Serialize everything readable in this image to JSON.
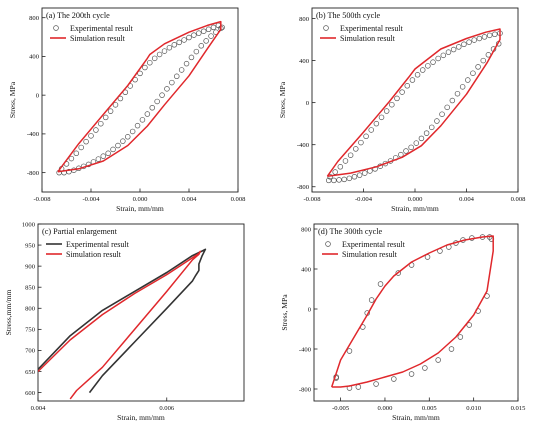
{
  "colors": {
    "simulation": "#e0282c",
    "experimental": "#555555",
    "enlargement_experimental": "#333333",
    "frame": "#222222"
  },
  "chart_data": [
    {
      "type": "line",
      "title": "(a) The 200th cycle",
      "xlabel": "Strain, mm/mm",
      "ylabel": "Stress, MPa",
      "xlim": [
        -0.008,
        0.008
      ],
      "ylim": [
        -1000,
        900
      ],
      "xticks": [
        -0.008,
        -0.004,
        0.0,
        0.004,
        0.008
      ],
      "xtick_labels": [
        "-0.008",
        "-0.004",
        "0.000",
        "0.004",
        "0.008"
      ],
      "yticks": [
        -800,
        -400,
        0,
        400,
        800
      ],
      "ytick_labels": [
        "-800",
        "-400",
        "0",
        "400",
        "800"
      ],
      "legend": {
        "position": "top-left",
        "entries": [
          "Experimental result",
          "Simulation result"
        ]
      },
      "series": [
        {
          "name": "Experimental result",
          "style": "markers",
          "x": [
            -0.0066,
            -0.0062,
            -0.0058,
            -0.0054,
            -0.005,
            -0.0046,
            -0.0042,
            -0.0038,
            -0.0034,
            -0.003,
            -0.0026,
            -0.0022,
            -0.0018,
            -0.0014,
            -0.001,
            -0.0006,
            -0.0002,
            0.0002,
            0.0006,
            0.001,
            0.0014,
            0.0018,
            0.0022,
            0.0026,
            0.003,
            0.0034,
            0.0038,
            0.0042,
            0.0046,
            0.005,
            0.0054,
            0.0058,
            0.0062,
            0.0066,
            0.0067,
            0.0064,
            0.006,
            0.0056,
            0.0052,
            0.0048,
            0.0044,
            0.004,
            0.0036,
            0.0032,
            0.0028,
            0.0024,
            0.002,
            0.0016,
            0.0012,
            0.0008,
            0.0004,
            0.0,
            -0.0004,
            -0.0008,
            -0.0012,
            -0.0016,
            -0.002,
            -0.0024,
            -0.0028,
            -0.0032,
            -0.0036,
            -0.004,
            -0.0044,
            -0.0048,
            -0.0052,
            -0.0056,
            -0.006,
            -0.0064
          ],
          "y": [
            -800,
            -800,
            -790,
            -775,
            -755,
            -735,
            -715,
            -690,
            -660,
            -630,
            -600,
            -560,
            -520,
            -475,
            -430,
            -375,
            -315,
            -255,
            -195,
            -130,
            -65,
            0,
            65,
            130,
            195,
            260,
            325,
            390,
            450,
            510,
            560,
            610,
            650,
            690,
            700,
            720,
            700,
            680,
            660,
            640,
            620,
            595,
            570,
            545,
            520,
            490,
            455,
            420,
            380,
            335,
            285,
            225,
            160,
            95,
            30,
            -35,
            -100,
            -165,
            -230,
            -295,
            -360,
            -420,
            -480,
            -540,
            -600,
            -655,
            -710,
            -760
          ]
        },
        {
          "name": "Simulation result",
          "style": "line",
          "x": [
            -0.0067,
            -0.005,
            -0.003,
            -0.001,
            0.0006,
            0.002,
            0.004,
            0.0055,
            0.0066,
            0.0066,
            0.0055,
            0.004,
            0.002,
            0.0008,
            0.0006,
            -0.001,
            -0.003,
            -0.005,
            -0.0067
          ],
          "y": [
            -790,
            -760,
            -680,
            -520,
            -320,
            -100,
            200,
            480,
            680,
            760,
            720,
            650,
            530,
            420,
            380,
            100,
            -200,
            -500,
            -790
          ]
        }
      ]
    },
    {
      "type": "line",
      "title": "(b) The 500th cycle",
      "xlabel": "Strain, mm/mm",
      "ylabel": "Stress, MPa",
      "xlim": [
        -0.008,
        0.008
      ],
      "ylim": [
        -850,
        900
      ],
      "xticks": [
        -0.008,
        -0.004,
        0.0,
        0.004,
        0.008
      ],
      "xtick_labels": [
        "-0.008",
        "-0.004",
        "0.000",
        "0.004",
        "0.008"
      ],
      "yticks": [
        -800,
        -400,
        0,
        400,
        800
      ],
      "ytick_labels": [
        "-800",
        "-400",
        "0",
        "400",
        "800"
      ],
      "legend": {
        "position": "top-left",
        "entries": [
          "Experimental result",
          "Simulation result"
        ]
      },
      "series": [
        {
          "name": "Experimental result",
          "style": "markers",
          "x": [
            -0.0067,
            -0.0063,
            -0.0059,
            -0.0055,
            -0.0051,
            -0.0047,
            -0.0043,
            -0.0039,
            -0.0035,
            -0.0031,
            -0.0027,
            -0.0023,
            -0.0019,
            -0.0015,
            -0.0011,
            -0.0007,
            -0.0003,
            0.0001,
            0.0005,
            0.0009,
            0.0013,
            0.0017,
            0.0021,
            0.0025,
            0.0029,
            0.0033,
            0.0037,
            0.0041,
            0.0045,
            0.0049,
            0.0053,
            0.0057,
            0.0061,
            0.0065,
            0.0066,
            0.0062,
            0.0058,
            0.0054,
            0.005,
            0.0046,
            0.0042,
            0.0038,
            0.0034,
            0.003,
            0.0026,
            0.0022,
            0.0018,
            0.0014,
            0.001,
            0.0006,
            0.0002,
            -0.0002,
            -0.0006,
            -0.001,
            -0.0014,
            -0.0018,
            -0.0022,
            -0.0026,
            -0.003,
            -0.0034,
            -0.0038,
            -0.0042,
            -0.0046,
            -0.005,
            -0.0054,
            -0.0058,
            -0.0062,
            -0.0066
          ],
          "y": [
            -740,
            -740,
            -735,
            -730,
            -720,
            -705,
            -690,
            -670,
            -650,
            -630,
            -605,
            -580,
            -555,
            -525,
            -495,
            -460,
            -425,
            -385,
            -340,
            -290,
            -235,
            -175,
            -110,
            -45,
            20,
            85,
            150,
            215,
            280,
            340,
            400,
            455,
            510,
            560,
            660,
            650,
            640,
            625,
            610,
            595,
            575,
            555,
            530,
            505,
            480,
            450,
            420,
            385,
            350,
            310,
            265,
            215,
            160,
            100,
            40,
            -20,
            -80,
            -140,
            -200,
            -260,
            -320,
            -380,
            -440,
            -500,
            -555,
            -610,
            -660,
            -705
          ]
        },
        {
          "name": "Simulation result",
          "style": "line",
          "x": [
            -0.0068,
            -0.005,
            -0.003,
            -0.001,
            0.0005,
            0.002,
            0.004,
            0.0056,
            0.0066,
            0.0066,
            0.0055,
            0.004,
            0.002,
            0.0,
            -0.0005,
            -0.002,
            -0.004,
            -0.006,
            -0.0068
          ],
          "y": [
            -700,
            -670,
            -610,
            -520,
            -410,
            -220,
            80,
            380,
            600,
            700,
            670,
            610,
            510,
            320,
            240,
            10,
            -280,
            -560,
            -700
          ]
        }
      ]
    },
    {
      "type": "line",
      "title": "(c) Partial enlargement",
      "xlabel": "Strain, mm/mm",
      "ylabel": "Stress,mm/mm",
      "xlim": [
        0.004,
        0.0072
      ],
      "ylim": [
        580,
        1000
      ],
      "xticks": [
        0.004,
        0.006
      ],
      "xtick_labels": [
        "0.004",
        "0.006"
      ],
      "yticks": [
        600,
        650,
        700,
        750,
        800,
        850,
        900,
        950,
        1000
      ],
      "ytick_labels": [
        "600",
        "650",
        "700",
        "750",
        "800",
        "850",
        "900",
        "950",
        "1000"
      ],
      "legend": {
        "position": "top-left",
        "entries": [
          "Experimental result",
          "Simulation result"
        ]
      },
      "series": [
        {
          "name": "Experimental result",
          "style": "line",
          "x": [
            0.004,
            0.0045,
            0.005,
            0.0055,
            0.006,
            0.0064,
            0.00655,
            0.0066,
            0.00655,
            0.0065,
            0.0065,
            0.00645,
            0.0064,
            0.006,
            0.0055,
            0.005,
            0.0048
          ],
          "y": [
            655,
            735,
            795,
            840,
            885,
            925,
            936,
            940,
            925,
            905,
            890,
            878,
            865,
            800,
            720,
            640,
            600
          ]
        },
        {
          "name": "Simulation result",
          "style": "line",
          "x": [
            0.004,
            0.0045,
            0.005,
            0.0055,
            0.006,
            0.0064,
            0.0065,
            0.00652,
            0.0065,
            0.0064,
            0.006,
            0.0055,
            0.005,
            0.0046,
            0.0045
          ],
          "y": [
            650,
            725,
            785,
            835,
            880,
            920,
            930,
            935,
            928,
            915,
            840,
            750,
            660,
            605,
            585
          ]
        }
      ]
    },
    {
      "type": "line",
      "title": "(d) The 300th cycle",
      "xlabel": "Strain, mm/mm",
      "ylabel": "Stress, MPa",
      "xlim": [
        -0.008,
        0.015
      ],
      "ylim": [
        -920,
        850
      ],
      "xticks": [
        -0.005,
        0.0,
        0.005,
        0.01,
        0.015
      ],
      "xtick_labels": [
        "-0.005",
        "0.000",
        "0.005",
        "0.010",
        "0.015"
      ],
      "yticks": [
        -800,
        -400,
        0,
        400,
        800
      ],
      "ytick_labels": [
        "-800",
        "-400",
        "0",
        "400",
        "800"
      ],
      "legend": {
        "position": "top-left",
        "entries": [
          "Experimental result",
          "Simulation result"
        ]
      },
      "series": [
        {
          "name": "Experimental result",
          "style": "markers",
          "x": [
            -0.0055,
            -0.004,
            -0.003,
            -0.001,
            0.001,
            0.003,
            0.0045,
            0.006,
            0.0075,
            0.0085,
            0.0095,
            0.0105,
            0.0115,
            0.012,
            0.0118,
            0.011,
            0.0098,
            0.0088,
            0.008,
            0.0072,
            0.0062,
            0.0048,
            0.003,
            0.0015,
            -0.0005,
            -0.0015,
            -0.002,
            -0.0025,
            -0.004,
            -0.0055
          ],
          "y": [
            -680,
            -790,
            -780,
            -750,
            -700,
            -650,
            -590,
            -510,
            -400,
            -280,
            -160,
            -20,
            130,
            700,
            720,
            720,
            710,
            690,
            660,
            620,
            580,
            520,
            440,
            360,
            250,
            90,
            -40,
            -180,
            -420,
            -690
          ]
        },
        {
          "name": "Simulation result",
          "style": "line",
          "x": [
            -0.006,
            -0.005,
            -0.004,
            -0.002,
            0.0,
            0.002,
            0.004,
            0.006,
            0.008,
            0.01,
            0.0115,
            0.0122,
            0.0122,
            0.011,
            0.009,
            0.007,
            0.005,
            0.003,
            0.001,
            0.0,
            -0.001,
            -0.002,
            -0.003,
            -0.005,
            -0.006
          ],
          "y": [
            -780,
            -780,
            -770,
            -730,
            -680,
            -630,
            -550,
            -440,
            -280,
            -60,
            180,
            580,
            730,
            720,
            690,
            640,
            560,
            470,
            330,
            230,
            100,
            -60,
            -210,
            -510,
            -780
          ]
        }
      ]
    }
  ]
}
